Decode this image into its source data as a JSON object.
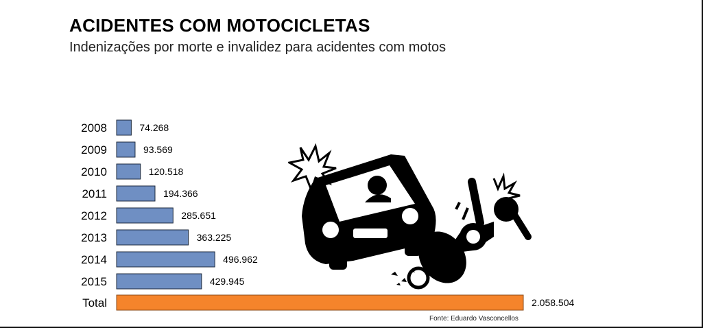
{
  "title": "ACIDENTES COM MOTOCICLETAS",
  "subtitle": "Indenizações por morte e invalidez para acidentes com motos",
  "source": "Fonte: Eduardo Vasconcellos",
  "colors": {
    "bar": "#6F8FC3",
    "total_bar": "#F5842B",
    "bar_stroke": "#1d2a3d"
  },
  "chart_data": {
    "type": "bar",
    "orientation": "horizontal",
    "title": "ACIDENTES COM MOTOCICLETAS",
    "subtitle": "Indenizações por morte e invalidez para acidentes com motos",
    "categories": [
      "2008",
      "2009",
      "2010",
      "2011",
      "2012",
      "2013",
      "2014",
      "2015",
      "Total"
    ],
    "values": [
      74268,
      93569,
      120518,
      194366,
      285651,
      363225,
      496962,
      429945,
      2058504
    ],
    "value_labels": [
      "74.268",
      "93.569",
      "120.518",
      "194.366",
      "285.651",
      "363.225",
      "496.962",
      "429.945",
      "2.058.504"
    ],
    "xlim": [
      0,
      2058504
    ],
    "grid": false,
    "legend": "none"
  },
  "illustration": {
    "icon": "car-crash-motorcycle-icon"
  }
}
